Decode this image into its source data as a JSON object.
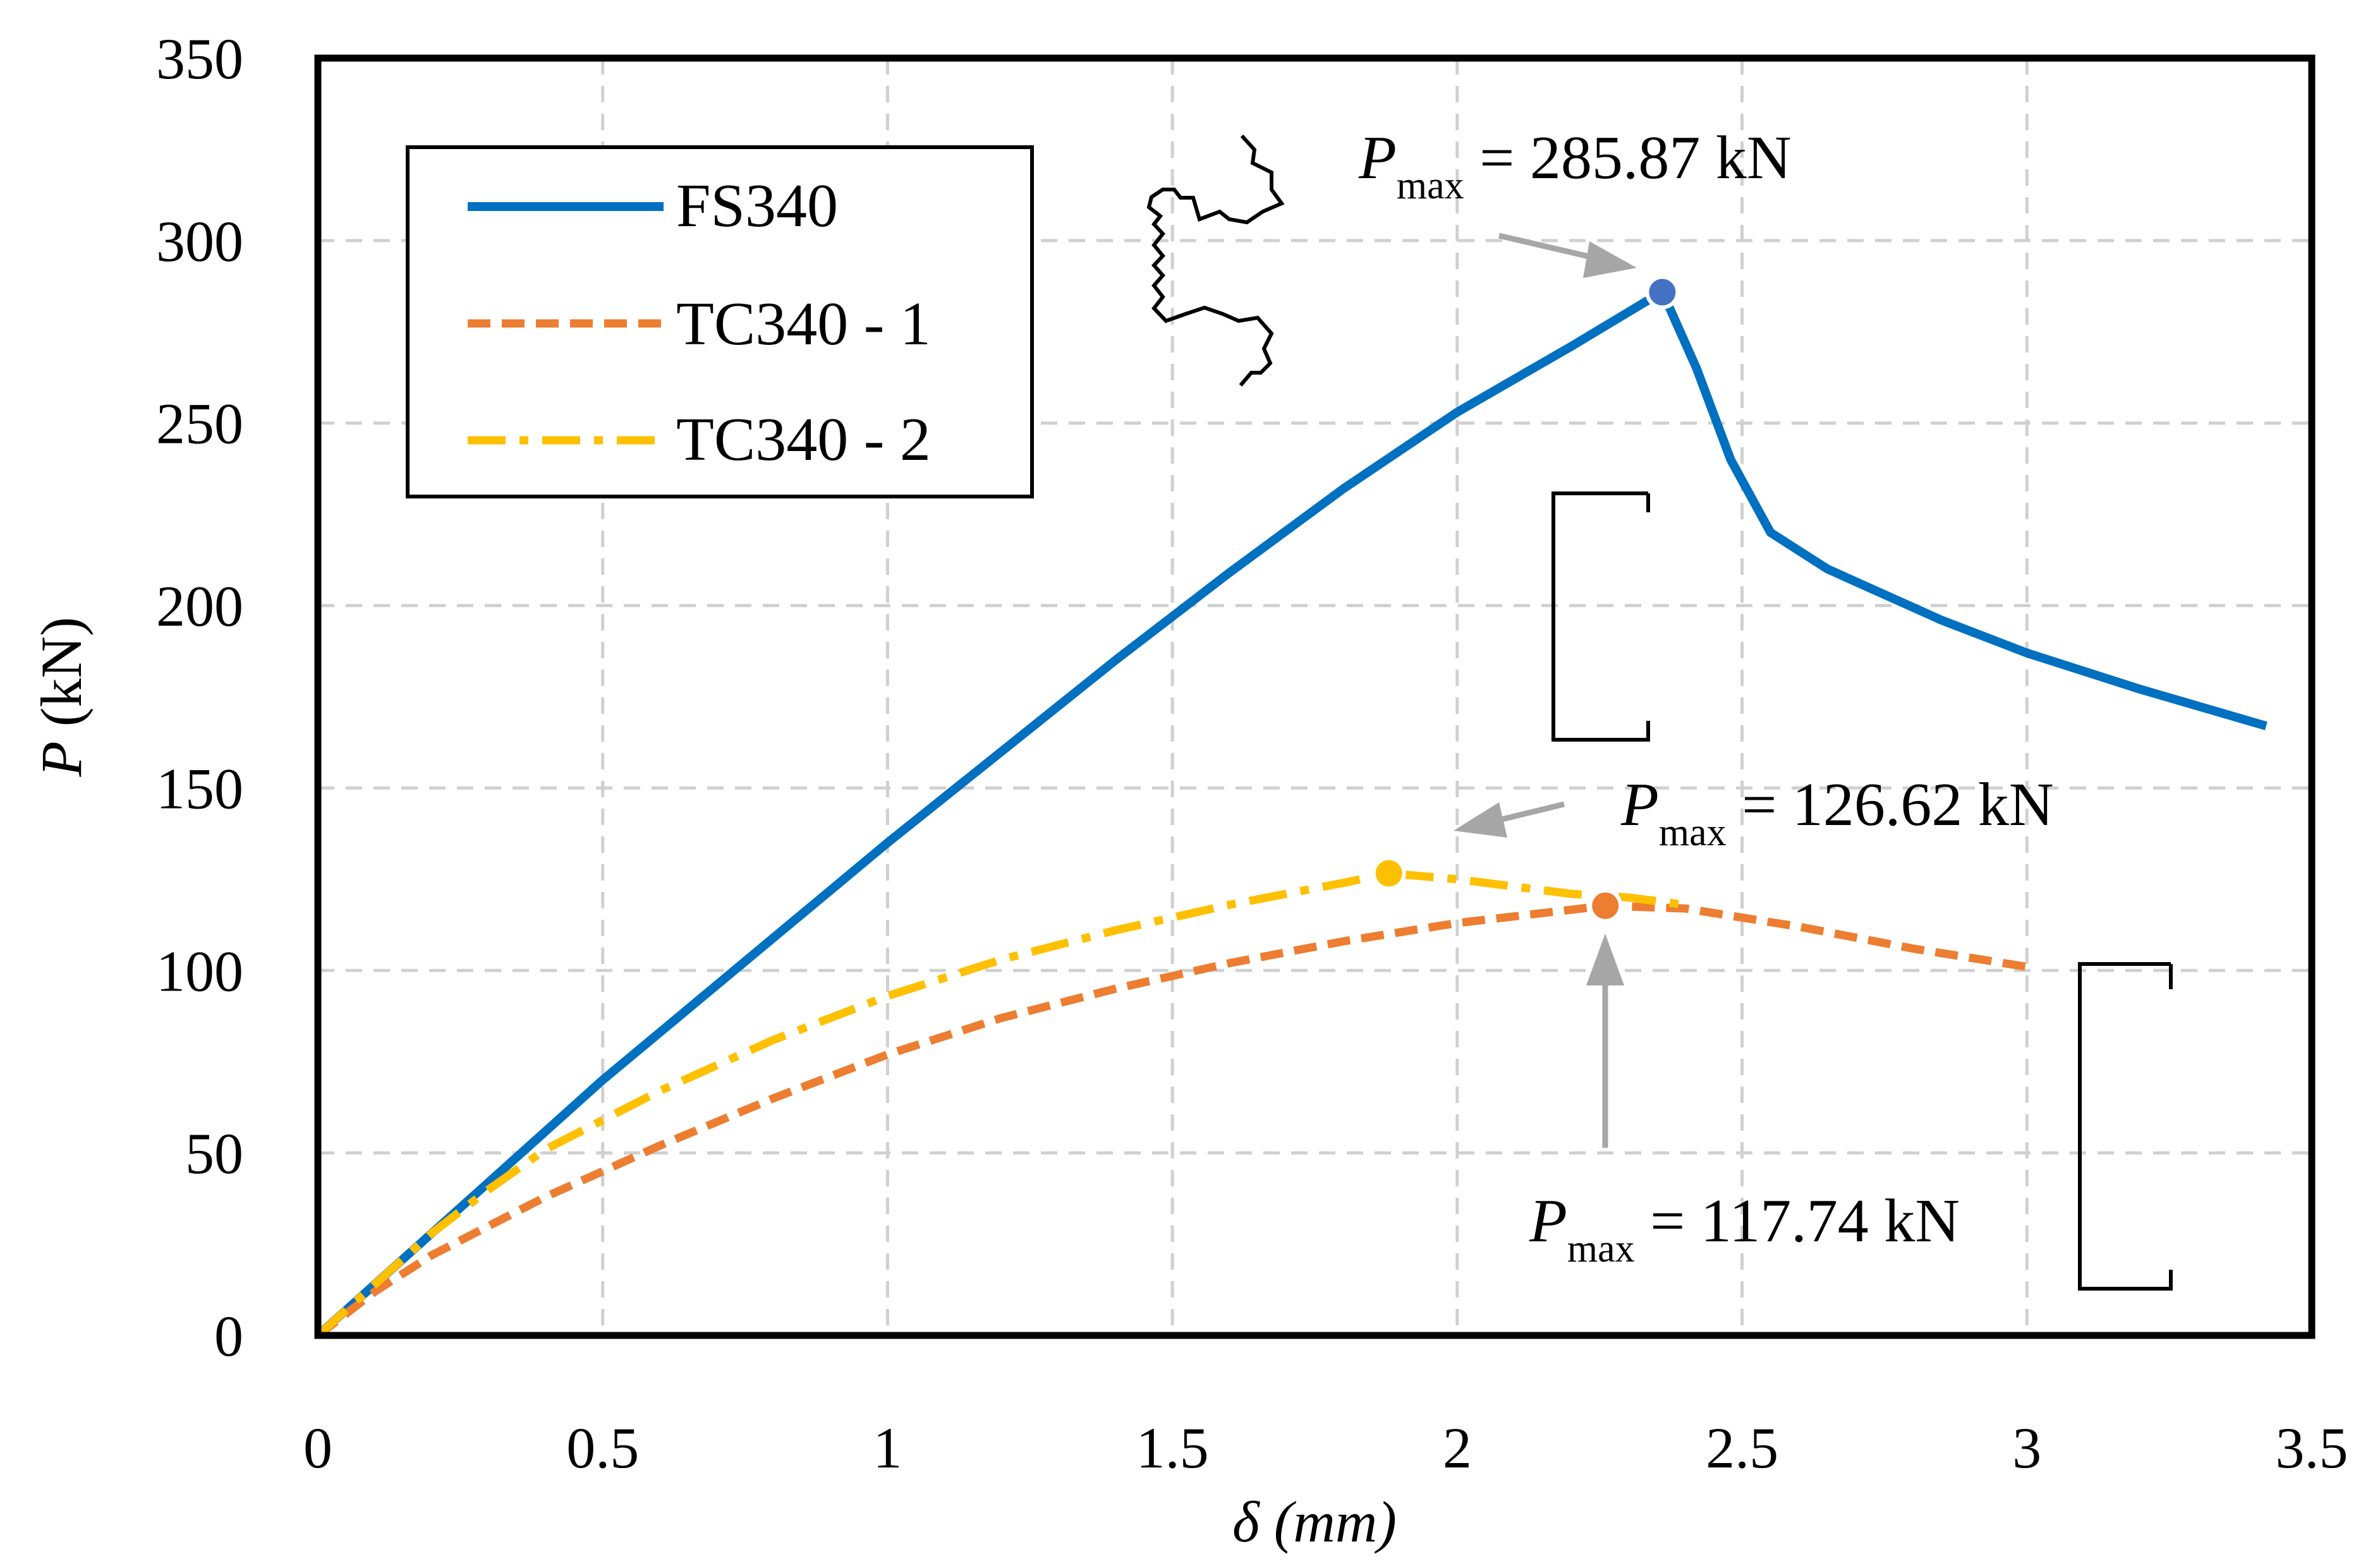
{
  "chart_data": {
    "type": "line",
    "title": "",
    "xlabel": "δ (mm)",
    "ylabel_italic": "P",
    "ylabel_unit": " (kN)",
    "xlim": [
      0,
      3.5
    ],
    "ylim": [
      0,
      350
    ],
    "xticks": [
      0,
      0.5,
      1,
      1.5,
      2,
      2.5,
      3,
      3.5
    ],
    "xtick_labels": [
      "0",
      "0.5",
      "1",
      "1.5",
      "2",
      "2.5",
      "3",
      "3.5"
    ],
    "yticks": [
      0,
      50,
      100,
      150,
      200,
      250,
      300,
      350
    ],
    "ytick_labels": [
      "0",
      "50",
      "100",
      "150",
      "200",
      "250",
      "300",
      "350"
    ],
    "grid": true,
    "legend_position": "top-left",
    "series": [
      {
        "name": "FS340",
        "color": "#0070C0",
        "style": "solid",
        "x": [
          0,
          0.1,
          0.2,
          0.3,
          0.4,
          0.5,
          0.6,
          0.7,
          0.8,
          0.9,
          1.0,
          1.2,
          1.4,
          1.6,
          1.8,
          2.0,
          2.2,
          2.36,
          2.42,
          2.48,
          2.55,
          2.65,
          2.75,
          2.85,
          3.0,
          3.2,
          3.42
        ],
        "y": [
          0,
          14,
          28,
          42,
          56,
          70,
          83,
          96,
          109,
          122,
          135,
          160,
          185,
          209,
          232,
          253,
          271,
          286,
          265,
          240,
          220,
          210,
          203,
          196,
          187,
          177,
          167
        ]
      },
      {
        "name": "TC340 - 1",
        "color": "#ED7D31",
        "style": "dashed",
        "x": [
          0,
          0.1,
          0.2,
          0.4,
          0.6,
          0.8,
          1.0,
          1.2,
          1.4,
          1.6,
          1.8,
          2.0,
          2.26,
          2.4,
          2.6,
          2.8,
          3.0
        ],
        "y": [
          0,
          12,
          22,
          38,
          52,
          65,
          77,
          87,
          95,
          102,
          108,
          113,
          117.74,
          117,
          112,
          106,
          101
        ]
      },
      {
        "name": "TC340 - 2",
        "color": "#FFC000",
        "style": "dashdot",
        "x": [
          0,
          0.1,
          0.2,
          0.3,
          0.4,
          0.5,
          0.6,
          0.8,
          1.0,
          1.2,
          1.4,
          1.6,
          1.8,
          1.88,
          2.0,
          2.2,
          2.3,
          2.4
        ],
        "y": [
          0,
          14,
          28,
          40,
          51,
          59,
          67,
          81,
          93,
          103,
          111,
          118,
          124,
          126.62,
          125,
          121,
          120,
          118
        ]
      }
    ],
    "peaks": [
      {
        "series": "FS340",
        "x": 2.36,
        "y": 285.87,
        "color": "#4472C4",
        "label_pre": "P",
        "label_sub": "max",
        "label_post": " = 285.87 kN"
      },
      {
        "series": "TC340 - 2",
        "x": 1.88,
        "y": 126.62,
        "color": "#FFC000",
        "label_pre": "P",
        "label_sub": "max",
        "label_post": " = 126.62 kN"
      },
      {
        "series": "TC340 - 1",
        "x": 2.26,
        "y": 117.74,
        "color": "#ED7D31",
        "label_pre": "P",
        "label_sub": "max",
        "label_post": " = 117.74 kN"
      }
    ]
  }
}
